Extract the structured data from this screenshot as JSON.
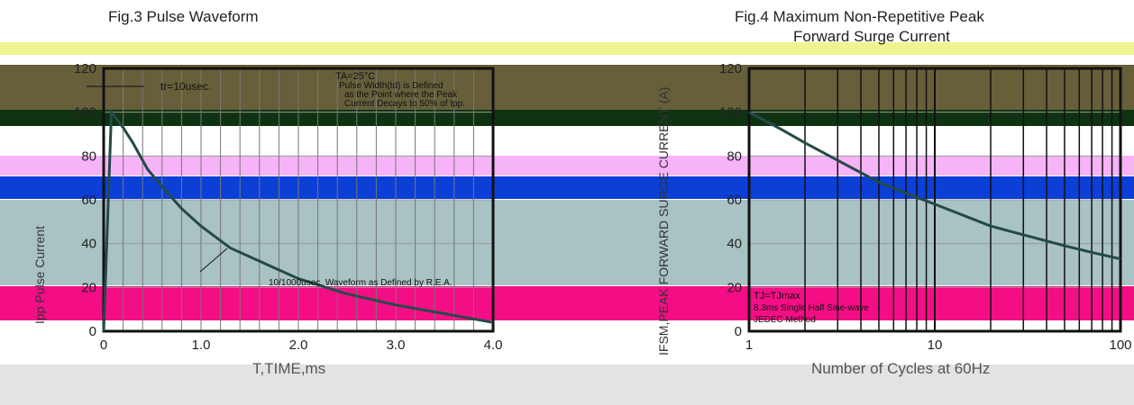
{
  "colors": {
    "curve": "#234a48",
    "frame": "#111111",
    "band_yellow": "#eef590",
    "band_olive": "#665f3a",
    "band_dark": "#0f3310",
    "band_pink": "#f7b3f7",
    "band_blue": "#0b3fd6",
    "band_teal": "#a9c2c3",
    "band_magenta": "#f40e86",
    "band_gray": "#c8c8cc"
  },
  "fig3": {
    "title": "Fig.3  Pulse Waveform",
    "xlabel": "T,TIME,ms",
    "ylabel_fragments": [
      "Ipp",
      "Pulse",
      "Current"
    ],
    "annotations": {
      "tr": "tr=10usec.",
      "condition_1": "TA=25°C",
      "condition_2": "Pulse  Width(td) is Defined",
      "condition_3": "as the Point  where the Peak",
      "condition_4": "Current  Decays to 50% of Ipp.",
      "waveform": "10/1000usec. Waveform as Defined by R.E.A."
    }
  },
  "fig4": {
    "title_line1": "Fig.4  Maximum Non-Repetitive Peak",
    "title_line2": "Forward Surge Current",
    "xlabel": "Number of Cycles at 60Hz",
    "ylabel_fragments": [
      "IFSM,PEAK FORWARD SURGE CURRENT (A)"
    ],
    "annotations": {
      "line1": "TJ=TJmax",
      "line2": "8.3ms Single Half Sine-wave",
      "line3": "JEDEC Method"
    }
  },
  "chart_data": [
    {
      "type": "line",
      "title": "Fig.3  Pulse Waveform",
      "xlabel": "T,TIME,ms",
      "ylabel": "",
      "xlim": [
        0,
        4.0
      ],
      "ylim": [
        0,
        120
      ],
      "x_ticks": [
        "0",
        "1.0",
        "2.0",
        "3.0",
        "4.0"
      ],
      "y_ticks": [
        "0",
        "20",
        "40",
        "60",
        "80",
        "100",
        "120"
      ],
      "grid": true,
      "series": [
        {
          "x": [
            0,
            0.08,
            0.2,
            0.3,
            0.45,
            0.6,
            0.8,
            1.0,
            1.3,
            1.6,
            2.0,
            2.5,
            3.0,
            3.5,
            4.0
          ],
          "y": [
            0,
            100,
            93,
            86,
            74,
            66,
            56,
            48,
            38,
            32,
            24,
            17,
            12,
            8,
            4
          ]
        }
      ]
    },
    {
      "type": "line",
      "title": "Fig.4  Maximum Non-Repetitive Peak Forward Surge Current",
      "xlabel": "Number of Cycles at 60Hz",
      "ylabel": "",
      "x_scale": "log",
      "xlim": [
        1,
        100
      ],
      "ylim": [
        0,
        120
      ],
      "x_ticks": [
        "1",
        "10",
        "100"
      ],
      "y_ticks": [
        "0",
        "20",
        "40",
        "60",
        "80",
        "100",
        "120"
      ],
      "grid": true,
      "series": [
        {
          "x": [
            1,
            1.5,
            2,
            3,
            5,
            7,
            10,
            20,
            30,
            50,
            70,
            100
          ],
          "y": [
            100,
            92,
            86,
            78,
            68,
            63,
            58,
            48,
            44,
            39,
            36,
            33
          ]
        }
      ]
    }
  ]
}
